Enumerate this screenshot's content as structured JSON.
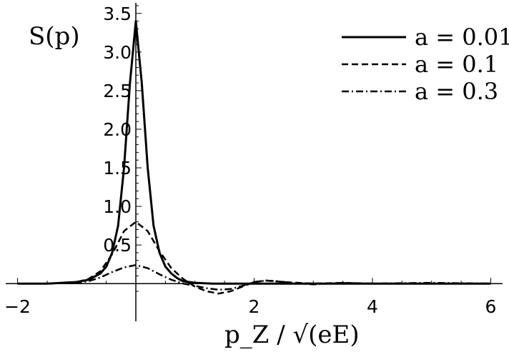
{
  "chart_data": {
    "type": "line",
    "title": "",
    "ylabel": "S(p)",
    "xlabel": "p_Z / √(eE)",
    "xlim": [
      -2.2,
      6.2
    ],
    "ylim": [
      -0.1,
      3.6
    ],
    "x_ticks": [
      -2,
      2,
      4,
      6
    ],
    "x_tick_labels": [
      "−2",
      "2",
      "4",
      "6"
    ],
    "y_ticks": [
      0.5,
      1.0,
      1.5,
      2.0,
      2.5,
      3.0,
      3.5
    ],
    "y_tick_labels": [
      "0.5",
      "1.0",
      "1.5",
      "2.0",
      "2.5",
      "3.0",
      "3.5"
    ],
    "grid": false,
    "legend_position": "top-right",
    "series": [
      {
        "name": "a = 0.01",
        "style": "solid",
        "x": [
          -2,
          -1.5,
          -1,
          -0.8,
          -0.6,
          -0.5,
          -0.4,
          -0.3,
          -0.2,
          -0.1,
          0,
          0.1,
          0.2,
          0.3,
          0.4,
          0.5,
          0.6,
          0.7,
          0.8,
          1.0,
          1.3,
          1.6,
          2.0,
          2.5,
          3,
          4,
          5,
          6
        ],
        "y": [
          0,
          0,
          0.02,
          0.05,
          0.13,
          0.22,
          0.4,
          0.75,
          1.5,
          2.6,
          3.4,
          2.6,
          1.5,
          0.75,
          0.4,
          0.22,
          0.13,
          0.07,
          0.03,
          0.01,
          0,
          0,
          0,
          0,
          0,
          0,
          0,
          0
        ]
      },
      {
        "name": "a = 0.1",
        "style": "dashed",
        "x": [
          -2,
          -1.5,
          -1,
          -0.8,
          -0.6,
          -0.4,
          -0.2,
          0,
          0.2,
          0.4,
          0.6,
          0.8,
          1.0,
          1.2,
          1.4,
          1.6,
          1.8,
          2.0,
          2.2,
          2.5,
          3,
          3.5,
          4,
          5,
          6
        ],
        "y": [
          0,
          0,
          0.02,
          0.06,
          0.16,
          0.38,
          0.68,
          0.8,
          0.68,
          0.42,
          0.2,
          0.06,
          -0.04,
          -0.1,
          -0.13,
          -0.1,
          -0.04,
          0.02,
          0.04,
          0.02,
          0,
          0.01,
          0,
          0,
          0
        ]
      },
      {
        "name": "a = 0.3",
        "style": "dashdot",
        "x": [
          -2,
          -1.5,
          -1,
          -0.8,
          -0.6,
          -0.4,
          -0.2,
          0,
          0.2,
          0.4,
          0.6,
          0.8,
          1.0,
          1.2,
          1.4,
          1.6,
          1.8,
          2.0,
          2.2,
          2.4,
          2.6,
          3,
          3.5,
          4,
          5,
          6
        ],
        "y": [
          0,
          0,
          0.01,
          0.03,
          0.08,
          0.15,
          0.21,
          0.24,
          0.2,
          0.12,
          0.05,
          0,
          -0.03,
          -0.06,
          -0.08,
          -0.07,
          -0.03,
          0.02,
          0.04,
          0.03,
          0.01,
          -0.01,
          0.01,
          0,
          0.01,
          0
        ]
      }
    ]
  }
}
